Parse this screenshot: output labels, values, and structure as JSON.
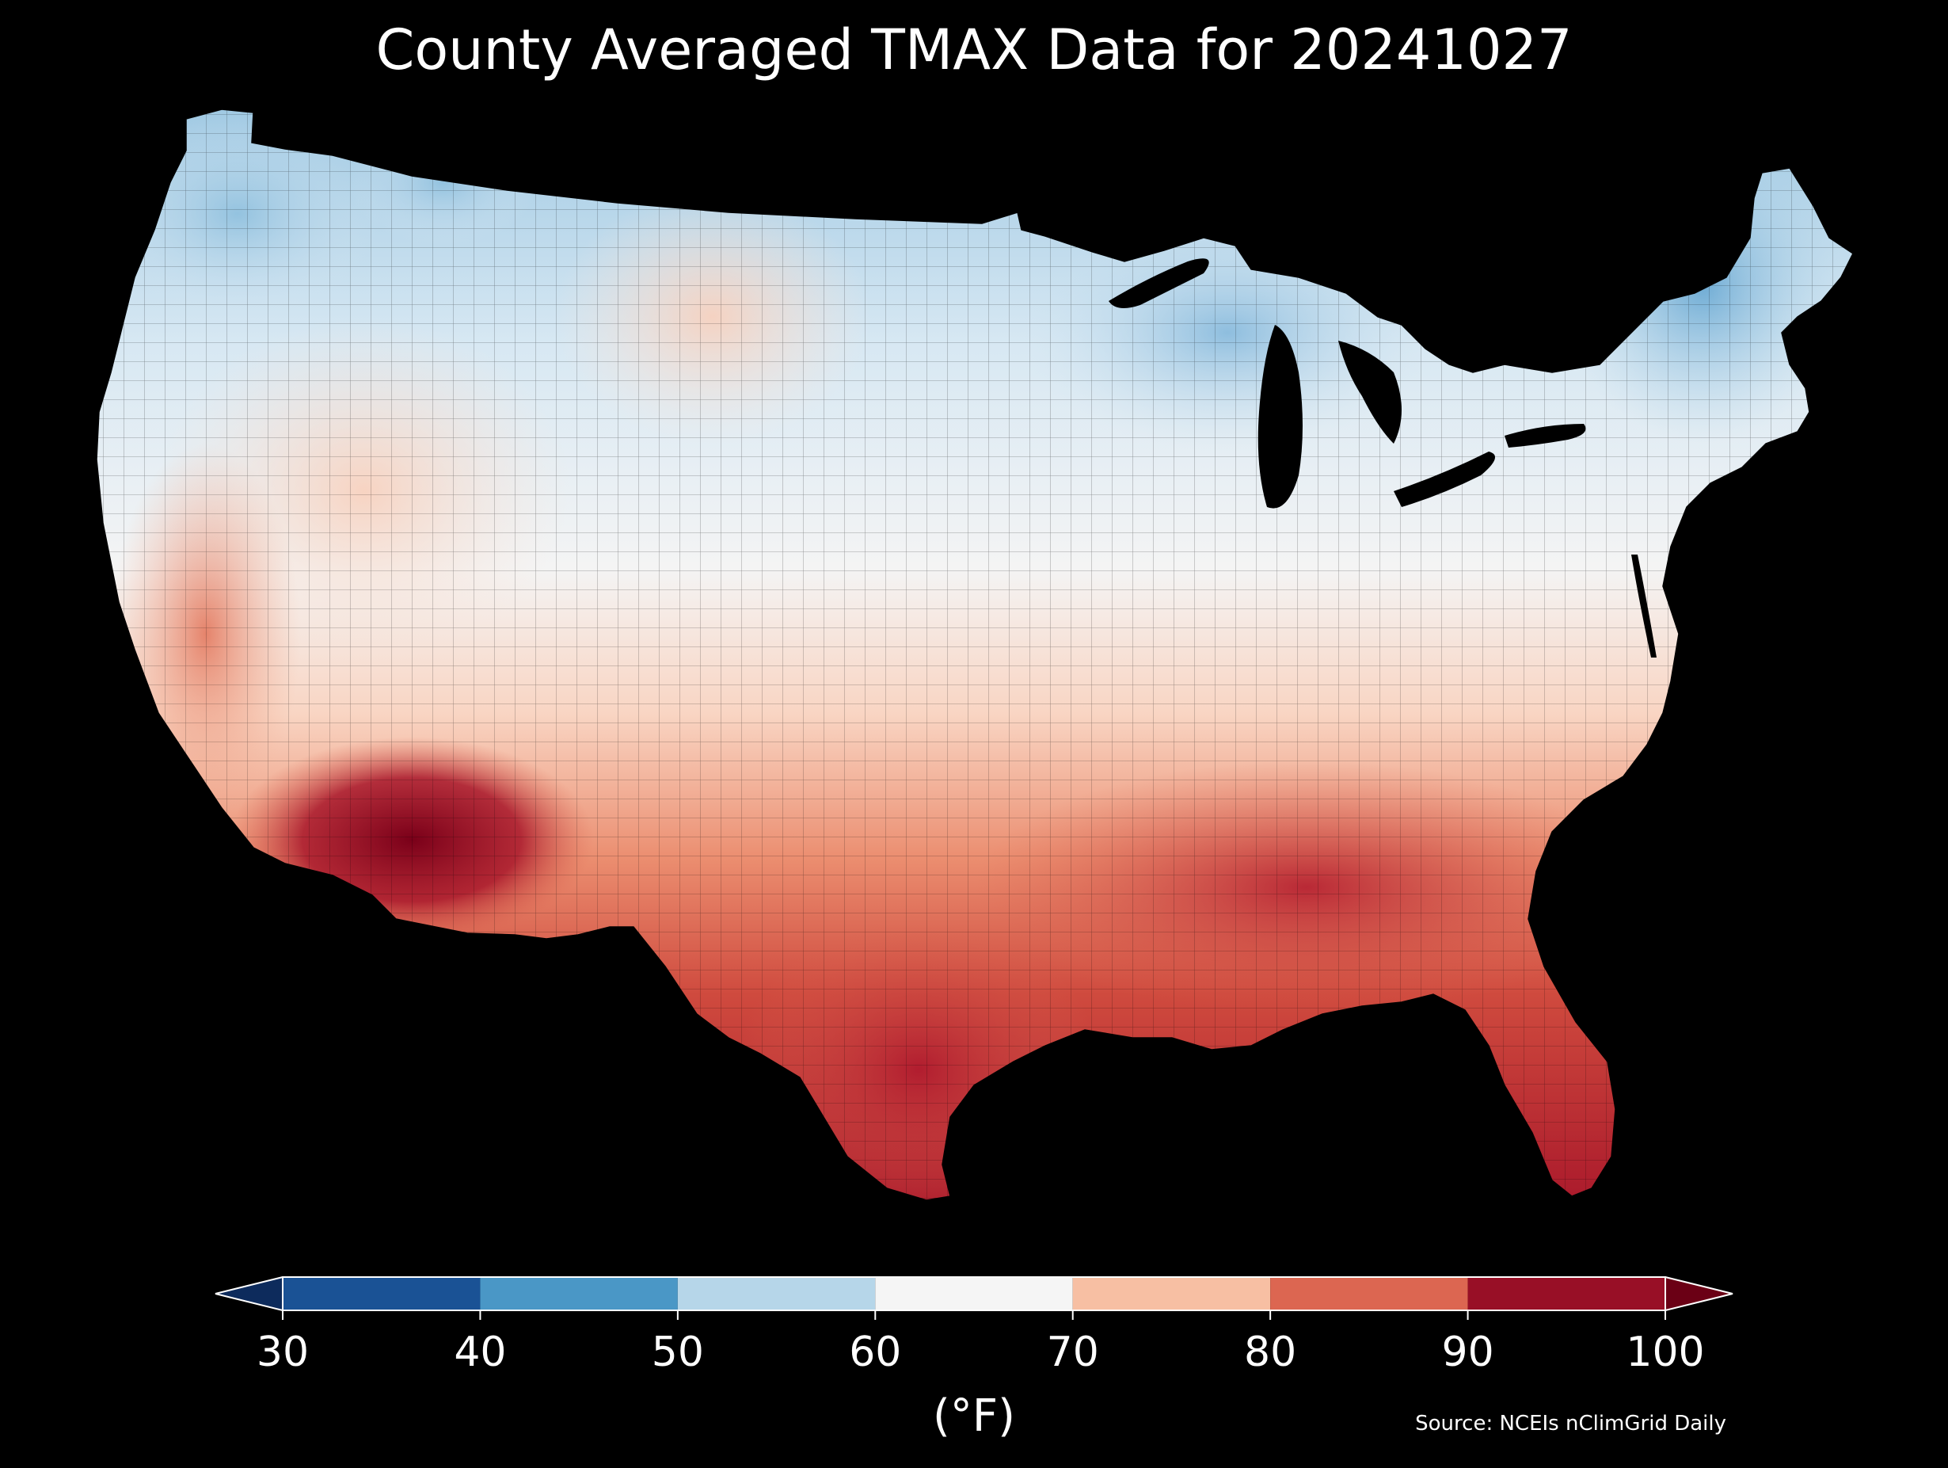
{
  "title": "County Averaged TMAX Data for 20241027",
  "source": "Source: NCEIs nClimGrid Daily",
  "colorbar": {
    "unit_label": "(°F)",
    "ticks": [
      "30",
      "40",
      "50",
      "60",
      "70",
      "80",
      "90",
      "100"
    ],
    "bins": [
      {
        "from": 30,
        "to": 40,
        "color": "#1a5295"
      },
      {
        "from": 40,
        "to": 50,
        "color": "#4a97c6"
      },
      {
        "from": 50,
        "to": 60,
        "color": "#b6d6e9"
      },
      {
        "from": 60,
        "to": 70,
        "color": "#f5f5f5"
      },
      {
        "from": 70,
        "to": 80,
        "color": "#f7bfa3"
      },
      {
        "from": 80,
        "to": 90,
        "color": "#dc6651"
      },
      {
        "from": 90,
        "to": 100,
        "color": "#980f26"
      }
    ],
    "under_color": "#0d2b5c",
    "over_color": "#6b0015"
  },
  "map": {
    "region": "Contiguous United States",
    "variable": "TMAX",
    "background_color": "#000000",
    "water_color": "#000000"
  }
}
